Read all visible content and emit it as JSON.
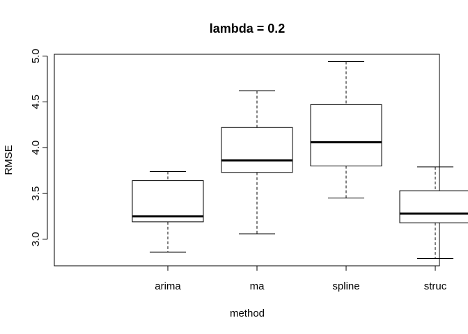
{
  "chart_data": {
    "type": "boxplot",
    "title": "lambda = 0.2",
    "xlabel": "method",
    "ylabel": "RMSE",
    "ylim": [
      2.71,
      5.02
    ],
    "yticks": [
      3.0,
      3.5,
      4.0,
      4.5,
      5.0
    ],
    "ytick_labels": [
      "3.0",
      "3.5",
      "4.0",
      "4.5",
      "5.0"
    ],
    "grid": false,
    "categories": [
      "arima",
      "ma",
      "spline",
      "struc"
    ],
    "boxes": [
      {
        "category": "arima",
        "whisker_low": 2.86,
        "q1": 3.19,
        "median": 3.25,
        "q3": 3.64,
        "whisker_high": 3.74
      },
      {
        "category": "ma",
        "whisker_low": 3.06,
        "q1": 3.73,
        "median": 3.86,
        "q3": 4.22,
        "whisker_high": 4.62
      },
      {
        "category": "spline",
        "whisker_low": 3.45,
        "q1": 3.8,
        "median": 4.06,
        "q3": 4.47,
        "whisker_high": 4.94
      },
      {
        "category": "struc",
        "whisker_low": 2.79,
        "q1": 3.18,
        "median": 3.28,
        "q3": 3.53,
        "whisker_high": 3.79
      }
    ]
  }
}
